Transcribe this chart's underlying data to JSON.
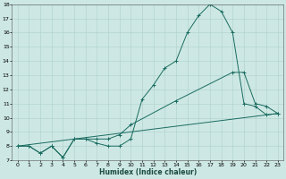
{
  "title": "",
  "xlabel": "Humidex (Indice chaleur)",
  "ylabel": "",
  "background_color": "#cde8e4",
  "grid_color": "#aed0cc",
  "line_color": "#1a6b60",
  "xlim": [
    -0.5,
    23.5
  ],
  "ylim": [
    7,
    18
  ],
  "yticks": [
    7,
    8,
    9,
    10,
    11,
    12,
    13,
    14,
    15,
    16,
    17,
    18
  ],
  "xticks": [
    0,
    1,
    2,
    3,
    4,
    5,
    6,
    7,
    8,
    9,
    10,
    11,
    12,
    13,
    14,
    15,
    16,
    17,
    18,
    19,
    20,
    21,
    22,
    23
  ],
  "line1_x": [
    0,
    1,
    2,
    3,
    4,
    5,
    6,
    7,
    8,
    9,
    10,
    11,
    12,
    13,
    14,
    15,
    16,
    17,
    18,
    19,
    20,
    21,
    22,
    23
  ],
  "line1_y": [
    8.0,
    8.0,
    7.5,
    8.0,
    7.2,
    8.5,
    8.5,
    8.2,
    8.0,
    8.0,
    8.5,
    11.3,
    12.3,
    13.5,
    14.0,
    16.0,
    17.2,
    18.0,
    17.5,
    16.0,
    11.0,
    10.8,
    10.2,
    10.3
  ],
  "line2_x": [
    0,
    1,
    2,
    3,
    4,
    5,
    6,
    7,
    8,
    9,
    10,
    14,
    19,
    20,
    21,
    22,
    23
  ],
  "line2_y": [
    8.0,
    8.0,
    7.5,
    8.0,
    7.2,
    8.5,
    8.5,
    8.5,
    8.5,
    8.8,
    9.5,
    11.2,
    13.2,
    13.2,
    11.0,
    10.8,
    10.3
  ],
  "line3_x": [
    0,
    23
  ],
  "line3_y": [
    8.0,
    10.3
  ]
}
